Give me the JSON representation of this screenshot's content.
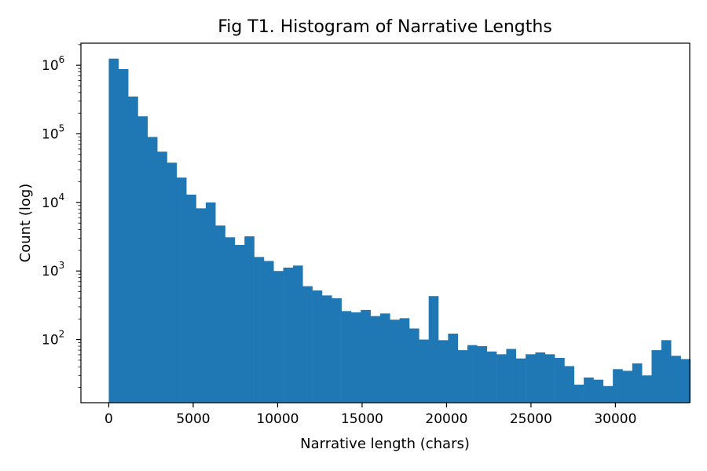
{
  "chart_data": {
    "type": "bar",
    "title": "Fig T1. Histogram of Narrative Lengths",
    "xlabel": "Narrative length (chars)",
    "ylabel": "Count (log)",
    "yscale": "log",
    "xlim": [
      -1650,
      34400
    ],
    "ylim": [
      12,
      2100000
    ],
    "grid": false,
    "bar_color": "#1f77b4",
    "bin_width": 574,
    "bin_start": 0,
    "values": [
      1250000,
      880000,
      350000,
      180000,
      90000,
      55000,
      38000,
      23000,
      13000,
      8200,
      10000,
      4600,
      3100,
      2400,
      3200,
      1600,
      1400,
      1000,
      1120,
      1200,
      600,
      520,
      440,
      400,
      260,
      250,
      270,
      220,
      240,
      195,
      205,
      145,
      100,
      430,
      98,
      122,
      70,
      83,
      80,
      67,
      61,
      73,
      53,
      61,
      65,
      61,
      54,
      41,
      22,
      28,
      26,
      21,
      37,
      35,
      45,
      30,
      70,
      98,
      58,
      52
    ],
    "xticks": [
      0,
      5000,
      10000,
      15000,
      20000,
      25000,
      30000
    ],
    "xtick_labels": [
      "0",
      "5000",
      "10000",
      "15000",
      "20000",
      "25000",
      "30000"
    ],
    "yticks": [
      {
        "value": 100,
        "base": "10",
        "exp": "2"
      },
      {
        "value": 1000,
        "base": "10",
        "exp": "3"
      },
      {
        "value": 10000,
        "base": "10",
        "exp": "4"
      },
      {
        "value": 100000,
        "base": "10",
        "exp": "5"
      },
      {
        "value": 1000000,
        "base": "10",
        "exp": "6"
      }
    ]
  }
}
